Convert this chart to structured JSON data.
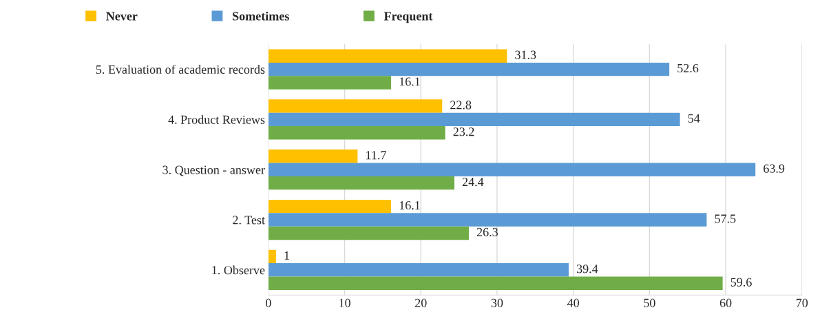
{
  "chart_data": {
    "type": "bar",
    "orientation": "horizontal",
    "categories": [
      "5. Evaluation of academic records",
      "4. Product Reviews",
      "3. Question - answer",
      "2. Test",
      "1. Observe"
    ],
    "series": [
      {
        "name": "Never",
        "color": "#ffc000",
        "values": [
          31.3,
          22.8,
          11.7,
          16.1,
          1
        ]
      },
      {
        "name": "Sometimes",
        "color": "#5b9bd5",
        "values": [
          52.6,
          54,
          63.9,
          57.5,
          39.4
        ]
      },
      {
        "name": "Frequent",
        "color": "#70ad47",
        "values": [
          16.1,
          23.2,
          24.4,
          26.3,
          59.6
        ]
      }
    ],
    "xlim": [
      0,
      70
    ],
    "xticks": [
      0,
      10,
      20,
      30,
      40,
      50,
      60,
      70
    ],
    "grid": "x",
    "legend": "top left",
    "data_labels": true
  }
}
